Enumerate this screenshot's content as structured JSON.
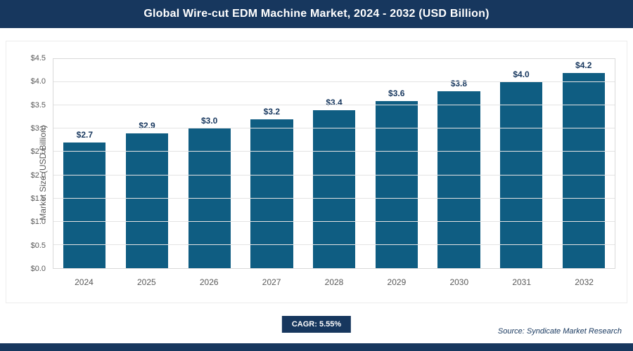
{
  "header": {
    "title": "Global Wire-cut EDM Machine Market, 2024 - 2032 (USD Billion)"
  },
  "chart_data": {
    "type": "bar",
    "title": "Global Wire-cut EDM Machine Market, 2024 - 2032 (USD Billion)",
    "categories": [
      "2024",
      "2025",
      "2026",
      "2027",
      "2028",
      "2029",
      "2030",
      "2031",
      "2032"
    ],
    "values": [
      2.7,
      2.9,
      3.0,
      3.2,
      3.4,
      3.6,
      3.8,
      4.0,
      4.2
    ],
    "value_labels": [
      "$2.7",
      "$2.9",
      "$3.0",
      "$3.2",
      "$3.4",
      "$3.6",
      "$3.8",
      "$4.0",
      "$4.2"
    ],
    "xlabel": "",
    "ylabel": "Market Size (USD Billion)",
    "ylim": [
      0,
      4.5
    ],
    "ytick_step": 0.5,
    "yticks": [
      "$0.0",
      "$0.5",
      "$1.0",
      "$1.5",
      "$2.0",
      "$2.5",
      "$3.0",
      "$3.5",
      "$4.0",
      "$4.5"
    ],
    "grid": true,
    "legend": "none",
    "bar_color": "#0f5d82"
  },
  "footer": {
    "cagr_label": "CAGR: 5.55%",
    "source": "Source: Syndicate Market Research"
  },
  "colors": {
    "banner": "#17375e",
    "bar": "#0f5d82",
    "value_label": "#17375e",
    "axis_text": "#595959",
    "gridline": "#e3e3e3",
    "footer_bar": "#17375e"
  }
}
